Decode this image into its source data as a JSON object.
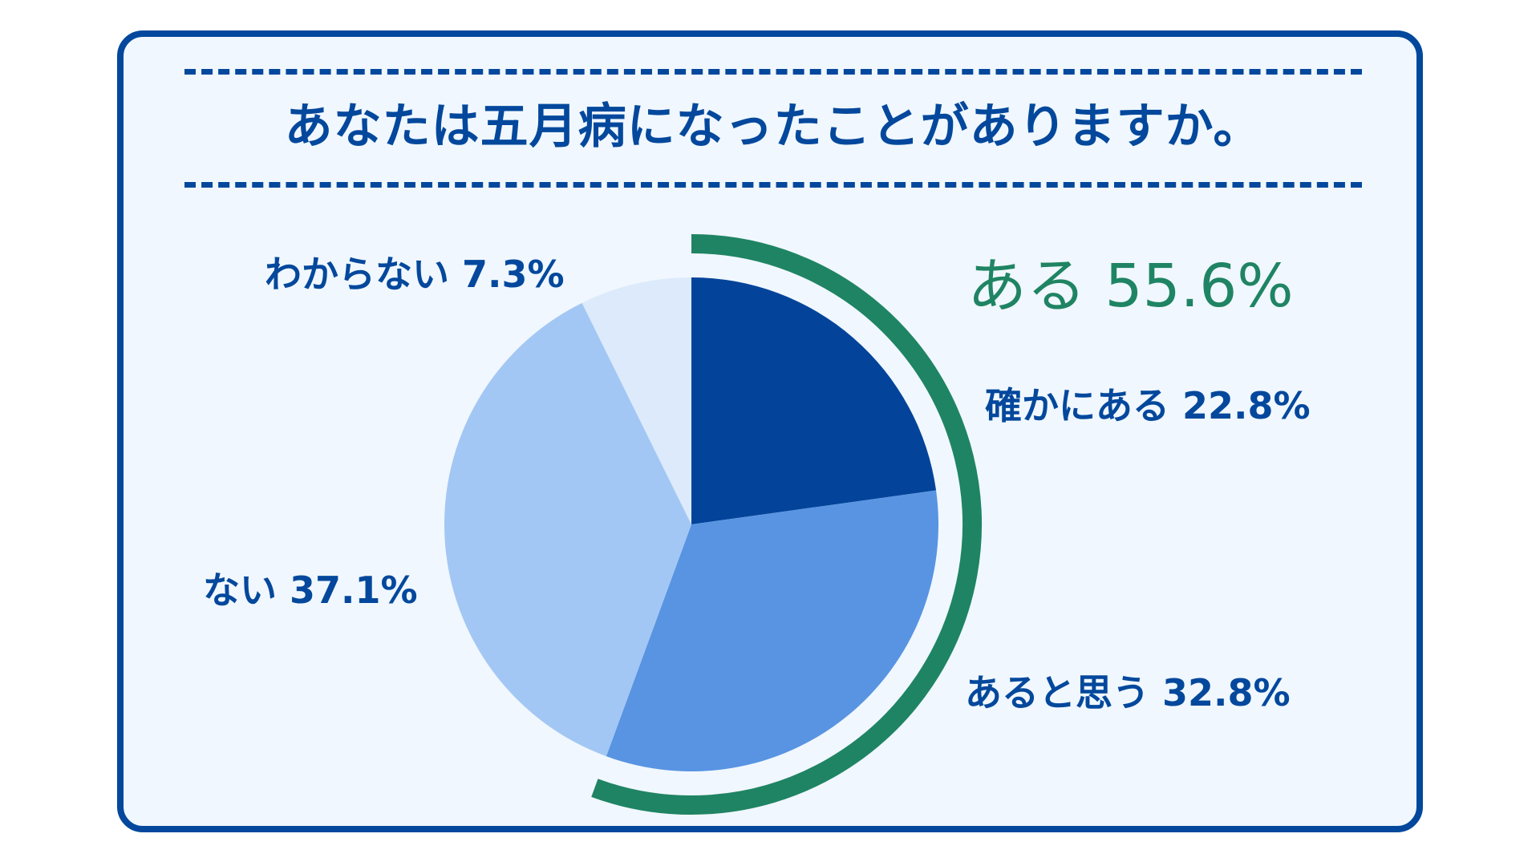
{
  "chart_data": {
    "type": "pie",
    "title": "あなたは五月病になったことがありますか。",
    "slices": [
      {
        "label": "確かにある",
        "value": 22.8,
        "display": "確かにある 22.8%",
        "color": "#03449a"
      },
      {
        "label": "あると思う",
        "value": 32.8,
        "display": "あると思う 32.8%",
        "color": "#5894e2"
      },
      {
        "label": "ない",
        "value": 37.1,
        "display": "ない 37.1%",
        "color": "#a3c7f4"
      },
      {
        "label": "わからない",
        "value": 7.3,
        "display": "わからない 7.3%",
        "color": "#dceafb"
      }
    ],
    "group": {
      "label": "ある 55.6%",
      "value": 55.6,
      "members": [
        "確かにある",
        "あると思う"
      ],
      "color": "#1f8463"
    },
    "start_angle_deg": 0,
    "direction": "clockwise"
  },
  "colors": {
    "frame": "#03489c",
    "card_background": "#f0f7fe"
  }
}
